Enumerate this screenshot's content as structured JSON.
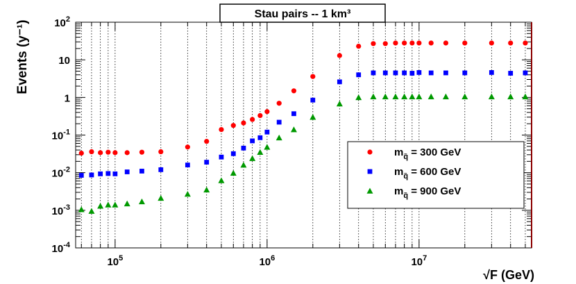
{
  "chart_data": {
    "type": "scatter",
    "title": "Stau pairs -- 1 km³",
    "xlabel": "√F (GeV)",
    "ylabel": "Events (y⁻¹)",
    "xscale": "log",
    "yscale": "log",
    "xlim": [
      55000,
      55000000
    ],
    "ylim": [
      0.0001,
      100
    ],
    "grid": "vertical-minor-and-major",
    "legend_position": "bottom-right",
    "x_tick_labels": [
      {
        "value": 100000,
        "base": "10",
        "exp": "5"
      },
      {
        "value": 1000000,
        "base": "10",
        "exp": "6"
      },
      {
        "value": 10000000,
        "base": "10",
        "exp": "7"
      }
    ],
    "y_tick_labels": [
      {
        "value": 100,
        "base": "10",
        "exp": "2"
      },
      {
        "value": 10,
        "base": "10",
        "exp": ""
      },
      {
        "value": 1,
        "base": "1",
        "exp": ""
      },
      {
        "value": 0.1,
        "base": "10",
        "exp": "-1"
      },
      {
        "value": 0.01,
        "base": "10",
        "exp": "-2"
      },
      {
        "value": 0.001,
        "base": "10",
        "exp": "-3"
      },
      {
        "value": 0.0001,
        "base": "10",
        "exp": "-4"
      }
    ],
    "series": [
      {
        "name": "m_q̃ = 300 GeV",
        "name_main": "m",
        "name_sub": "q̃",
        "name_rest": " = 300 GeV",
        "marker": "circle",
        "color": "#ff0000",
        "x": [
          60000,
          70000,
          80000,
          90000,
          100000,
          120000,
          150000,
          200000,
          300000,
          400000,
          500000,
          600000,
          700000,
          800000,
          900000,
          1000000,
          1200000,
          1500000,
          2000000,
          3000000,
          4000000,
          5000000,
          6000000,
          7000000,
          8000000,
          9000000,
          10000000,
          12000000,
          15000000,
          20000000,
          30000000,
          40000000,
          50000000
        ],
        "y": [
          0.033,
          0.036,
          0.034,
          0.035,
          0.034,
          0.034,
          0.035,
          0.036,
          0.048,
          0.068,
          0.14,
          0.18,
          0.21,
          0.26,
          0.33,
          0.42,
          0.7,
          1.5,
          3.6,
          13,
          23,
          27,
          27,
          28,
          28,
          28,
          28,
          28,
          28,
          28,
          28,
          28,
          28
        ]
      },
      {
        "name": "m_q̃ = 600 GeV",
        "name_main": "m",
        "name_sub": "q̃",
        "name_rest": " = 600 GeV",
        "marker": "square",
        "color": "#0000ff",
        "x": [
          60000,
          70000,
          80000,
          90000,
          100000,
          120000,
          150000,
          200000,
          300000,
          400000,
          500000,
          600000,
          700000,
          800000,
          900000,
          1000000,
          1200000,
          1500000,
          2000000,
          3000000,
          4000000,
          5000000,
          6000000,
          7000000,
          8000000,
          9000000,
          10000000,
          12000000,
          15000000,
          20000000,
          30000000,
          40000000,
          50000000
        ],
        "y": [
          0.0085,
          0.0087,
          0.0093,
          0.0095,
          0.0093,
          0.0105,
          0.011,
          0.012,
          0.016,
          0.019,
          0.026,
          0.032,
          0.045,
          0.07,
          0.085,
          0.12,
          0.22,
          0.37,
          0.85,
          2.6,
          4.0,
          4.5,
          4.5,
          4.5,
          4.5,
          4.4,
          4.6,
          4.5,
          4.5,
          4.5,
          4.6,
          4.4,
          4.5
        ]
      },
      {
        "name": "m_q̃ = 900 GeV",
        "name_main": "m",
        "name_sub": "q̃",
        "name_rest": " = 900 GeV",
        "marker": "triangle",
        "color": "#009900",
        "x": [
          60000,
          70000,
          80000,
          90000,
          100000,
          120000,
          150000,
          200000,
          300000,
          400000,
          500000,
          600000,
          700000,
          800000,
          900000,
          1000000,
          1200000,
          1500000,
          2000000,
          3000000,
          4000000,
          5000000,
          6000000,
          7000000,
          8000000,
          9000000,
          10000000,
          12000000,
          15000000,
          20000000,
          30000000,
          40000000,
          50000000
        ],
        "y": [
          0.00105,
          0.00095,
          0.0013,
          0.0014,
          0.0014,
          0.0015,
          0.0017,
          0.0021,
          0.0027,
          0.0035,
          0.0062,
          0.0098,
          0.016,
          0.024,
          0.035,
          0.048,
          0.085,
          0.14,
          0.3,
          0.68,
          1.0,
          1.05,
          1.05,
          1.05,
          1.05,
          1.05,
          1.05,
          1.05,
          1.05,
          1.05,
          1.05,
          1.05,
          1.05
        ]
      }
    ]
  }
}
